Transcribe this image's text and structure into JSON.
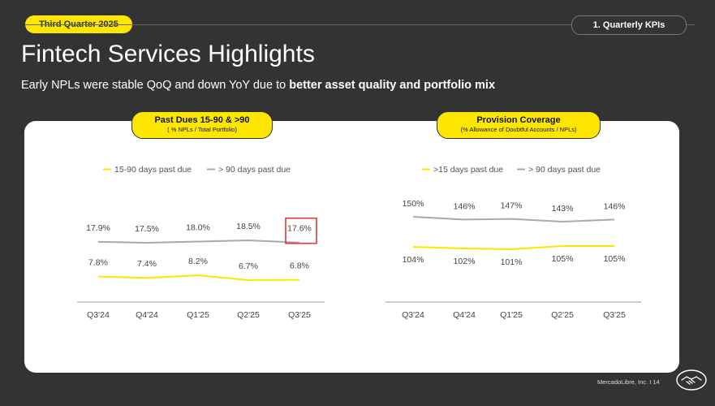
{
  "header": {
    "quarter_badge": "Third Quarter 2025",
    "section_tab": "1. Quarterly KPIs",
    "title": "Fintech Services Highlights",
    "subtitle_plain": "Early NPLs were stable QoQ and down YoY due to ",
    "subtitle_bold": "better asset quality and portfolio mix"
  },
  "colors": {
    "yellow": "#ffe600",
    "gray": "#aaaaaa",
    "highlight_box": "#e03a3a"
  },
  "panels": {
    "left": {
      "title": "Past Dues 15-90 & >90",
      "subtitle": "( % NPLs / Total Portfolio)"
    },
    "right": {
      "title": "Provision Coverage",
      "subtitle": "(% Allowance of Doubtful Accounts / NPLs)"
    }
  },
  "chart_data": [
    {
      "type": "line",
      "categories": [
        "Q3'24",
        "Q4'24",
        "Q1'25",
        "Q2'25",
        "Q3'25"
      ],
      "series": [
        {
          "name": "15-90 days past due",
          "values": [
            7.8,
            7.4,
            8.2,
            6.7,
            6.8
          ],
          "labels": [
            "7.8%",
            "7.4%",
            "8.2%",
            "6.7%",
            "6.8%"
          ],
          "color": "#ffe600"
        },
        {
          "name": "> 90 days past due",
          "values": [
            17.9,
            17.5,
            18.0,
            18.5,
            17.6
          ],
          "labels": [
            "17.9%",
            "17.5%",
            "18.0%",
            "18.5%",
            "17.6%"
          ],
          "color": "#aaaaaa"
        }
      ],
      "highlighted_point": {
        "series": 1,
        "index": 4
      },
      "legend": "top"
    },
    {
      "type": "line",
      "categories": [
        "Q3'24",
        "Q4'24",
        "Q1'25",
        "Q2'25",
        "Q3'25"
      ],
      "series": [
        {
          "name": ">15 days past due",
          "values": [
            104,
            102,
            101,
            105,
            105
          ],
          "labels": [
            "104%",
            "102%",
            "101%",
            "105%",
            "105%"
          ],
          "color": "#ffe600"
        },
        {
          "name": "> 90 days past due",
          "values": [
            150,
            146,
            147,
            143,
            146
          ],
          "labels": [
            "150%",
            "146%",
            "147%",
            "143%",
            "146%"
          ],
          "color": "#aaaaaa"
        }
      ],
      "legend": "top"
    }
  ],
  "footer": {
    "text": "MercadoLibre, Inc.  I  14"
  }
}
